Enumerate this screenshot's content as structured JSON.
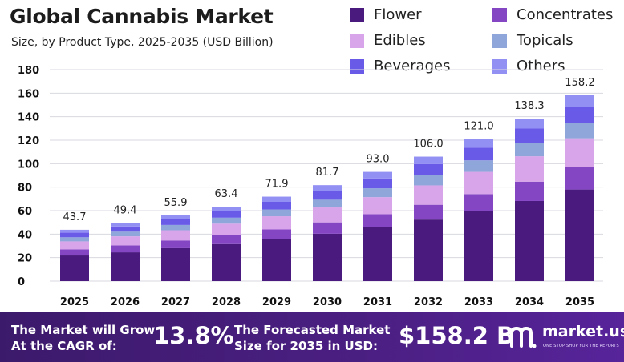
{
  "colors": {
    "flower": "#4a1a7e",
    "concentrates": "#8546c4",
    "edibles": "#d9a5ea",
    "topicals": "#8fa6db",
    "beverages": "#6a5ae8",
    "others": "#9390f4",
    "footer_bg": "#4b1f83",
    "grid": "#d8d8e0"
  },
  "chart_data": {
    "type": "bar",
    "stacked": true,
    "title": "Global Cannabis Market",
    "subtitle": "Size, by Product Type, 2025-2035 (USD Billion)",
    "xlabel": "",
    "ylabel": "",
    "ylim": [
      0,
      180
    ],
    "yticks": [
      "0",
      "20",
      "40",
      "60",
      "80",
      "100",
      "120",
      "140",
      "160",
      "180"
    ],
    "grid": "horizontal gridlines",
    "legend_position": "top-right",
    "categories": [
      "2025",
      "2026",
      "2027",
      "2028",
      "2029",
      "2030",
      "2031",
      "2032",
      "2033",
      "2034",
      "2035"
    ],
    "totals": [
      "43.7",
      "49.4",
      "55.9",
      "63.4",
      "71.9",
      "81.7",
      "93.0",
      "106.0",
      "121.0",
      "138.3",
      "158.2"
    ],
    "series": [
      {
        "name": "Flower",
        "values": [
          21.8,
          24.5,
          28.0,
          31.5,
          35.5,
          40.3,
          46.0,
          52.4,
          59.7,
          68.2,
          78.0
        ]
      },
      {
        "name": "Concentrates",
        "values": [
          5.2,
          5.9,
          6.6,
          7.5,
          8.5,
          9.7,
          11.0,
          12.6,
          14.4,
          16.5,
          18.9
        ]
      },
      {
        "name": "Edibles",
        "values": [
          6.8,
          7.7,
          8.7,
          9.9,
          11.2,
          12.7,
          14.5,
          16.5,
          18.9,
          21.6,
          24.7
        ]
      },
      {
        "name": "Topicals",
        "values": [
          3.5,
          4.0,
          4.5,
          5.1,
          5.8,
          6.6,
          7.5,
          8.6,
          9.8,
          11.2,
          12.8
        ]
      },
      {
        "name": "Beverages",
        "values": [
          3.9,
          4.4,
          5.0,
          5.7,
          6.5,
          7.4,
          8.4,
          9.5,
          10.9,
          12.4,
          14.2
        ]
      },
      {
        "name": "Others",
        "values": [
          2.5,
          2.9,
          3.1,
          3.7,
          4.4,
          5.0,
          5.6,
          6.4,
          7.3,
          8.4,
          9.6
        ]
      }
    ]
  },
  "footer": {
    "cagr_label_line1": "The Market will Grow",
    "cagr_label_line2": "At the CAGR of:",
    "cagr_value": "13.8%",
    "forecast_label_line1": "The Forecasted Market",
    "forecast_label_line2": "Size for 2035 in USD:",
    "forecast_value": "$158.2 B",
    "brand_name": "market.us",
    "brand_tagline": "ONE STOP SHOP FOR THE REPORTS"
  }
}
